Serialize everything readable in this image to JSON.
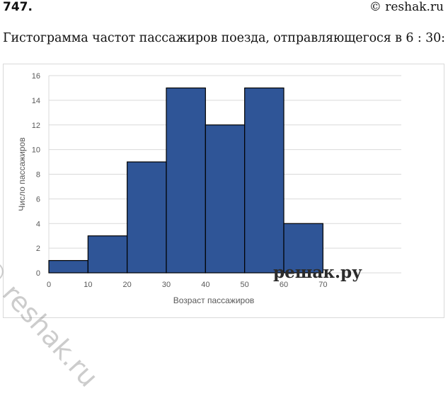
{
  "header": {
    "number": "747",
    "number_suffix": ".",
    "copyright": "© reshak.ru"
  },
  "caption": "Гистограмма частот пассажиров поезда, отправляющегося в 6 : 30:",
  "watermarks": {
    "diagonal": "© reshak.ru",
    "bottom": "решак.ру"
  },
  "colors": {
    "bar_fill": "#2f5597",
    "bar_stroke": "#000000",
    "grid": "#d9d9d9"
  },
  "chart_data": {
    "type": "bar",
    "title": "",
    "xlabel": "Возраст пассажиров",
    "ylabel": "Число пассажиров",
    "bins": [
      [
        0,
        10
      ],
      [
        10,
        20
      ],
      [
        20,
        30
      ],
      [
        30,
        40
      ],
      [
        40,
        50
      ],
      [
        50,
        60
      ],
      [
        60,
        70
      ]
    ],
    "values": [
      1,
      3,
      9,
      15,
      12,
      15,
      4
    ],
    "xlim": [
      0,
      90
    ],
    "ylim": [
      0,
      16
    ],
    "x_ticks": [
      0,
      10,
      20,
      30,
      40,
      50,
      60,
      70
    ],
    "y_ticks": [
      0,
      2,
      4,
      6,
      8,
      10,
      12,
      14,
      16
    ],
    "grid": true,
    "legend": "none"
  }
}
